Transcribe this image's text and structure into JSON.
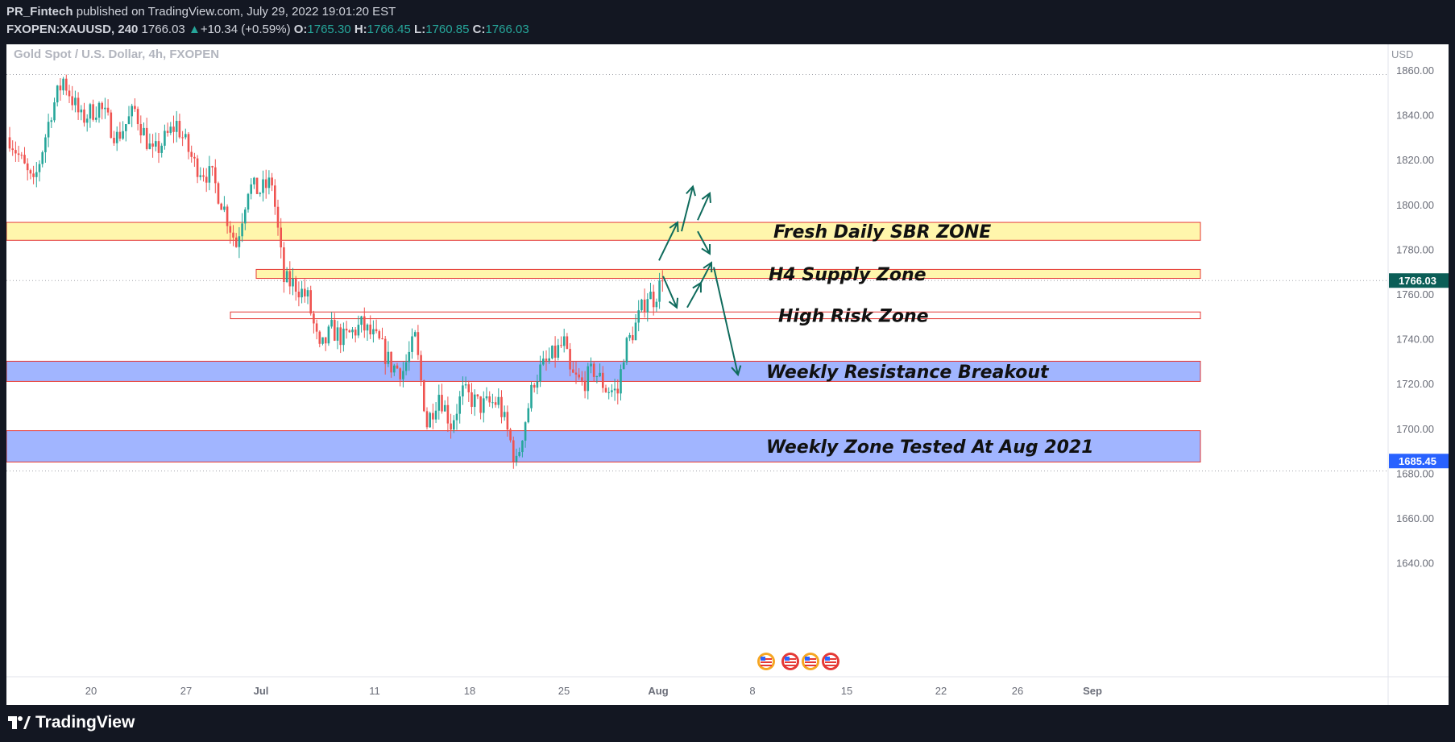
{
  "header": {
    "publisher": "PR_Fintech",
    "published_text": "published on TradingView.com, July 29, 2022 19:01:20 EST",
    "symbol": "FXOPEN:XAUUSD, 240",
    "last": "1766.03",
    "change_arrow": "▲",
    "change": "+10.34 (+0.59%)",
    "o_label": "O:",
    "o_value": "1765.30",
    "h_label": "H:",
    "h_value": "1766.45",
    "l_label": "L:",
    "l_value": "1760.85",
    "c_label": "C:",
    "c_value": "1766.03"
  },
  "chart_title": "Gold Spot / U.S. Dollar, 4h, FXOPEN",
  "currency_label": "USD",
  "footer": {
    "brand": "TradingView",
    "logo_icon": "tradingview-logo-icon"
  },
  "colors": {
    "up": "#26a69a",
    "down": "#ef5350",
    "supply_zone": "#fff59d",
    "weekly_zone": "#90a8ff",
    "zone_border": "#e53935",
    "arrow": "#0f6b5c",
    "price_tag": "#0b5e57",
    "low_tag": "#2962ff"
  },
  "chart_data": {
    "type": "candlestick",
    "title": "Gold Spot / U.S. Dollar, 4h, FXOPEN",
    "ylabel": "USD",
    "ylim": [
      1628,
      1866
    ],
    "y_ticks": [
      1860,
      1840,
      1820,
      1800,
      1780,
      1760,
      1740,
      1720,
      1700,
      1680,
      1660,
      1640
    ],
    "x_ticks": [
      "20",
      "27",
      "Jul",
      "11",
      "18",
      "25",
      "Aug",
      "8",
      "15",
      "22",
      "26",
      "Sep"
    ],
    "last_price": 1766.03,
    "last_price_label": "1766.03",
    "marked_low": 1685.45,
    "marked_low_label": "1685.45",
    "zones": [
      {
        "name": "Fresh Daily SBR ZONE",
        "top": 1792,
        "bottom": 1784,
        "type": "supply"
      },
      {
        "name": "H4 Supply Zone",
        "top": 1771,
        "bottom": 1767,
        "type": "supply"
      },
      {
        "name": "High Risk Zone",
        "top": 1752,
        "bottom": 1749,
        "type": "risk"
      },
      {
        "name": "Weekly Resistance Breakout",
        "top": 1730,
        "bottom": 1721,
        "type": "weekly"
      },
      {
        "name": "Weekly Zone Tested At Aug 2021",
        "top": 1699,
        "bottom": 1685,
        "type": "weekly"
      }
    ],
    "candle_keypoints": [
      [
        0,
        1830
      ],
      [
        8,
        1808
      ],
      [
        14,
        1842
      ],
      [
        18,
        1856
      ],
      [
        24,
        1838
      ],
      [
        30,
        1844
      ],
      [
        36,
        1830
      ],
      [
        42,
        1842
      ],
      [
        48,
        1822
      ],
      [
        56,
        1836
      ],
      [
        62,
        1818
      ],
      [
        68,
        1812
      ],
      [
        72,
        1798
      ],
      [
        76,
        1782
      ],
      [
        80,
        1808
      ],
      [
        84,
        1806
      ],
      [
        88,
        1810
      ],
      [
        92,
        1766
      ],
      [
        96,
        1764
      ],
      [
        100,
        1758
      ],
      [
        104,
        1734
      ],
      [
        108,
        1744
      ],
      [
        112,
        1740
      ],
      [
        118,
        1746
      ],
      [
        124,
        1738
      ],
      [
        128,
        1728
      ],
      [
        132,
        1726
      ],
      [
        136,
        1740
      ],
      [
        140,
        1702
      ],
      [
        144,
        1716
      ],
      [
        148,
        1702
      ],
      [
        152,
        1716
      ],
      [
        158,
        1710
      ],
      [
        164,
        1712
      ],
      [
        168,
        1694
      ],
      [
        170,
        1684
      ],
      [
        172,
        1698
      ],
      [
        176,
        1722
      ],
      [
        178,
        1726
      ],
      [
        182,
        1732
      ],
      [
        186,
        1738
      ],
      [
        188,
        1724
      ],
      [
        192,
        1720
      ],
      [
        196,
        1726
      ],
      [
        200,
        1718
      ],
      [
        204,
        1716
      ],
      [
        206,
        1734
      ],
      [
        210,
        1746
      ],
      [
        214,
        1760
      ],
      [
        216,
        1758
      ],
      [
        219,
        1766
      ]
    ],
    "projection_arrows_count": 8
  }
}
